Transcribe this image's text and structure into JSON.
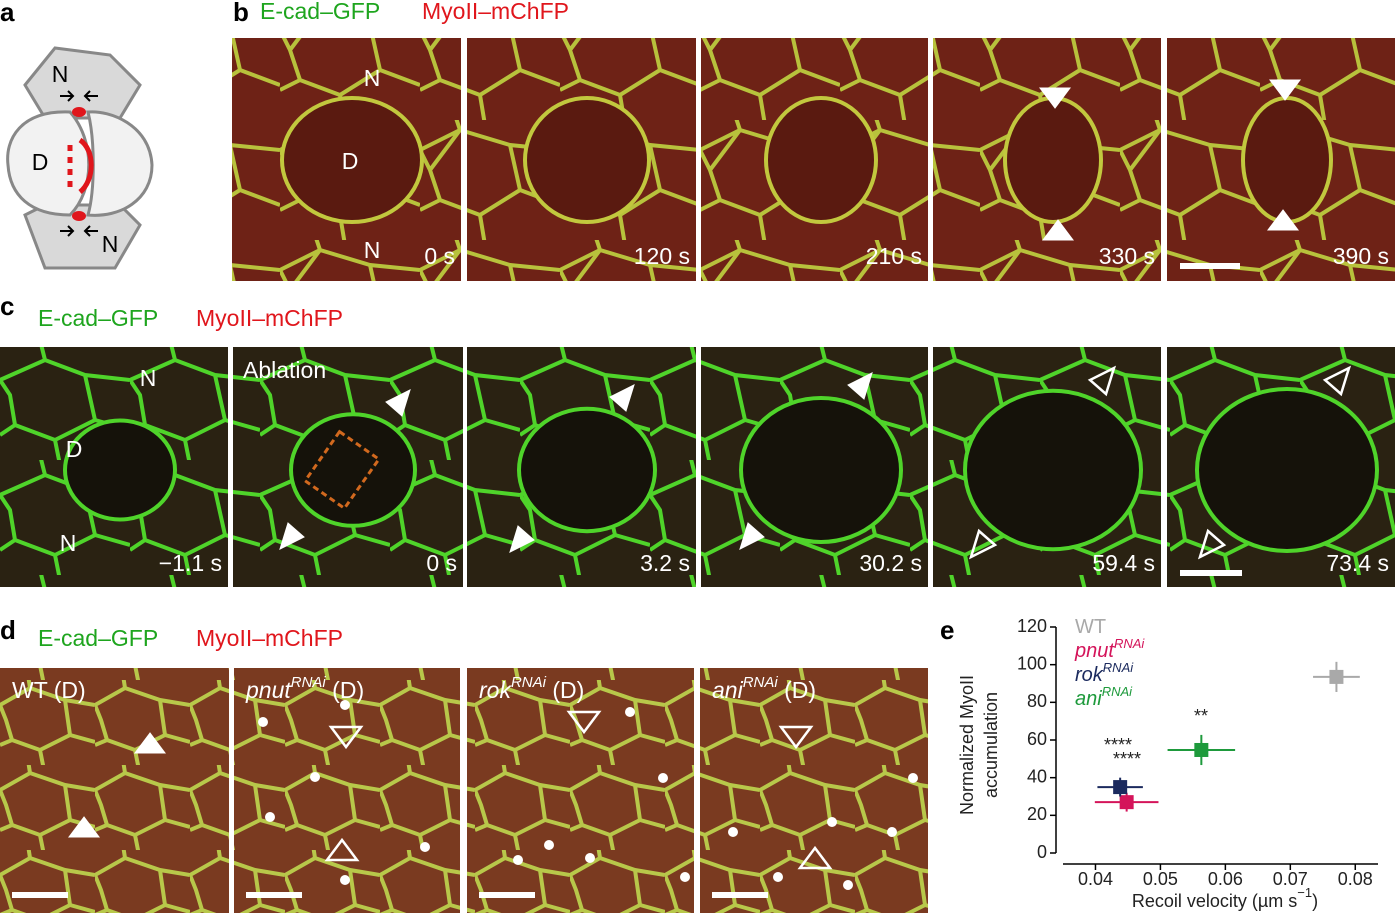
{
  "panels": {
    "a": {
      "label": "a",
      "cells": [
        "N",
        "D",
        "N"
      ]
    },
    "b": {
      "label": "b",
      "legend": [
        "E-cad–GFP",
        "MyoII–mChFP"
      ],
      "cells": [
        "N",
        "D",
        "N"
      ],
      "times": [
        "0 s",
        "120 s",
        "210 s",
        "330 s",
        "390 s"
      ]
    },
    "c": {
      "label": "c",
      "legend": [
        "E-cad–GFP",
        "MyoII–mChFP"
      ],
      "cells": [
        "N",
        "D",
        "N"
      ],
      "annotation": "Ablation",
      "times": [
        "−1.1 s",
        "0 s",
        "3.2 s",
        "30.2 s",
        "59.4 s",
        "73.4 s"
      ]
    },
    "d": {
      "label": "d",
      "legend": [
        "E-cad–GFP",
        "MyoII–mChFP"
      ],
      "titles": [
        {
          "name": "WT",
          "suffix": " (D)"
        },
        {
          "name": "pnut",
          "sup": "RNAi",
          "suffix": " (D)"
        },
        {
          "name": "rok",
          "sup": "RNAi",
          "suffix": " (D)"
        },
        {
          "name": "ani",
          "sup": "RNAi",
          "suffix": " (D)"
        }
      ]
    },
    "e": {
      "label": "e"
    }
  },
  "chart_data": {
    "type": "scatter",
    "ylabel": [
      "Normalized MyoII",
      "accumulation"
    ],
    "xlabel": {
      "text": "Recoil velocity (µm s",
      "sup": "−1",
      "end": ")"
    },
    "xlim": [
      0.035,
      0.0835
    ],
    "ylim": [
      0,
      120
    ],
    "xticks": [
      0.04,
      0.05,
      0.06,
      0.07,
      0.08
    ],
    "yticks": [
      0,
      20,
      40,
      60,
      80,
      100,
      120
    ],
    "series": [
      {
        "name": "WT",
        "color": "#a9a9a9",
        "x": [
          0.0771
        ],
        "values": [
          93.5
        ],
        "xerr": [
          0.0036
        ],
        "yerr": [
          8
        ]
      },
      {
        "name": "pnut",
        "sup": "RNAi",
        "color": "#d4145a",
        "x": [
          0.0448
        ],
        "values": [
          27
        ],
        "xerr": [
          0.0049
        ],
        "yerr": [
          5
        ],
        "annotation": "****"
      },
      {
        "name": "rok",
        "sup": "RNAi",
        "color": "#1b2a5e",
        "x": [
          0.0438
        ],
        "values": [
          35
        ],
        "xerr": [
          0.0035
        ],
        "yerr": [
          5
        ],
        "annotation": "****"
      },
      {
        "name": "ani",
        "sup": "RNAi",
        "color": "#1e9a3c",
        "x": [
          0.0563
        ],
        "values": [
          54.7
        ],
        "xerr": [
          0.0052
        ],
        "yerr": [
          8
        ],
        "annotation": "**"
      }
    ]
  }
}
